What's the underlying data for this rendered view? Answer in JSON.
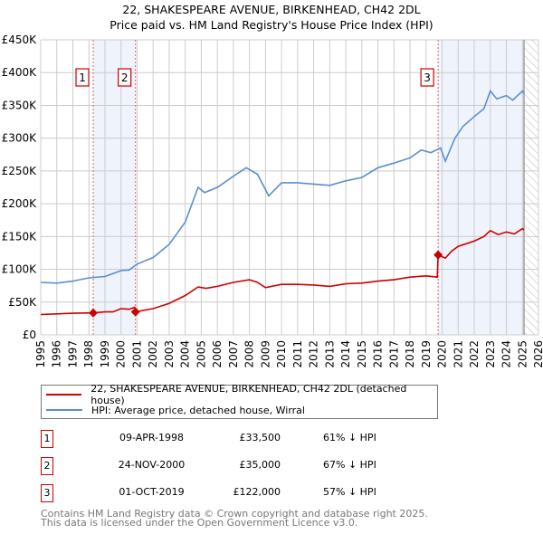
{
  "chart_data": {
    "type": "line",
    "title": "22, SHAKESPEARE AVENUE, BIRKENHEAD, CH42 2DL",
    "subtitle": "Price paid vs. HM Land Registry's House Price Index (HPI)",
    "xlim": [
      1995,
      2026
    ],
    "ylim": [
      0,
      450000
    ],
    "x_ticks": [
      "1995",
      "1996",
      "1997",
      "1998",
      "1999",
      "2000",
      "2001",
      "2002",
      "2003",
      "2004",
      "2005",
      "2006",
      "2007",
      "2008",
      "2009",
      "2010",
      "2011",
      "2012",
      "2013",
      "2014",
      "2015",
      "2016",
      "2017",
      "2018",
      "2019",
      "2020",
      "2021",
      "2022",
      "2023",
      "2024",
      "2025",
      "2026"
    ],
    "y_ticks": [
      {
        "v": 0,
        "label": "£0"
      },
      {
        "v": 50000,
        "label": "£50K"
      },
      {
        "v": 100000,
        "label": "£100K"
      },
      {
        "v": 150000,
        "label": "£150K"
      },
      {
        "v": 200000,
        "label": "£200K"
      },
      {
        "v": 250000,
        "label": "£250K"
      },
      {
        "v": 300000,
        "label": "£300K"
      },
      {
        "v": 350000,
        "label": "£350K"
      },
      {
        "v": 400000,
        "label": "£400K"
      },
      {
        "v": 450000,
        "label": "£450K"
      }
    ],
    "grid": true,
    "shaded_ranges": [
      [
        1998.27,
        2000.9
      ],
      [
        2019.75,
        2025.1
      ]
    ],
    "hatched_from": 2025.1,
    "series": [
      {
        "name": "22, SHAKESPEARE AVENUE, BIRKENHEAD, CH42 2DL (detached house)",
        "color": "#cc0000",
        "x": [
          1995,
          1996,
          1997,
          1998.27,
          1999,
          1999.5,
          2000,
          2000.5,
          2000.85,
          2000.9,
          2001.5,
          2002,
          2003,
          2004,
          2004.8,
          2005.3,
          2006,
          2007,
          2008,
          2008.5,
          2009,
          2010,
          2011,
          2012,
          2013,
          2014,
          2015,
          2016,
          2017,
          2018,
          2019,
          2019.7,
          2019.75,
          2020.2,
          2020.6,
          2021,
          2022,
          2022.6,
          2023,
          2023.5,
          2024,
          2024.5,
          2025,
          2025.1
        ],
        "y": [
          31000,
          32000,
          33000,
          33500,
          35000,
          35000,
          40000,
          39000,
          42000,
          35000,
          38000,
          40000,
          48000,
          60000,
          73000,
          71000,
          74000,
          80000,
          84000,
          80000,
          72000,
          77000,
          77000,
          76000,
          74000,
          78000,
          79000,
          82000,
          84000,
          88000,
          90000,
          88000,
          122000,
          117000,
          128000,
          135000,
          143000,
          150000,
          159000,
          153000,
          157000,
          154000,
          162000,
          160000
        ]
      },
      {
        "name": "HPI: Average price, detached house, Wirral",
        "color": "#5b8fd0",
        "x": [
          1995,
          1996,
          1997,
          1998,
          1999,
          2000,
          2000.5,
          2001,
          2002,
          2003,
          2004,
          2004.8,
          2005.2,
          2006,
          2007,
          2007.8,
          2008.5,
          2009.2,
          2010,
          2011,
          2012,
          2013,
          2014,
          2015,
          2016,
          2017,
          2018,
          2018.7,
          2019.3,
          2019.9,
          2020.2,
          2020.8,
          2021.3,
          2022,
          2022.6,
          2023,
          2023.4,
          2024,
          2024.4,
          2025,
          2025.1
        ],
        "y": [
          80000,
          79000,
          82000,
          87000,
          89000,
          98000,
          99000,
          108000,
          118000,
          138000,
          172000,
          225000,
          217000,
          225000,
          242000,
          255000,
          245000,
          212000,
          232000,
          232000,
          230000,
          228000,
          235000,
          240000,
          255000,
          262000,
          270000,
          282000,
          278000,
          285000,
          265000,
          300000,
          318000,
          333000,
          345000,
          372000,
          360000,
          365000,
          358000,
          372000,
          368000
        ]
      }
    ],
    "sales": [
      {
        "id": "1",
        "x": 1998.27,
        "y": 33500
      },
      {
        "id": "2",
        "x": 2000.9,
        "y": 35000
      },
      {
        "id": "3",
        "x": 2019.75,
        "y": 122000
      }
    ]
  },
  "legend": {
    "property": "22, SHAKESPEARE AVENUE, BIRKENHEAD, CH42 2DL (detached house)",
    "hpi": "HPI: Average price, detached house, Wirral"
  },
  "transactions": [
    {
      "num": "1",
      "date": "09-APR-1998",
      "price": "£33,500",
      "hpi": "61% ↓ HPI"
    },
    {
      "num": "2",
      "date": "24-NOV-2000",
      "price": "£35,000",
      "hpi": "67% ↓ HPI"
    },
    {
      "num": "3",
      "date": "01-OCT-2019",
      "price": "£122,000",
      "hpi": "57% ↓ HPI"
    }
  ],
  "footer": {
    "line1": "Contains HM Land Registry data © Crown copyright and database right 2025.",
    "line2": "This data is licensed under the Open Government Licence v3.0."
  }
}
